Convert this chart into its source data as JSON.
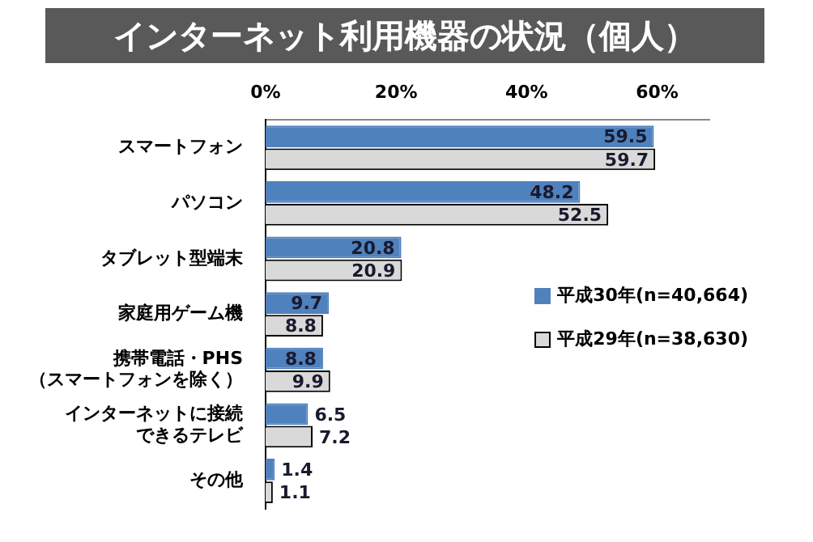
{
  "chart_data": {
    "type": "bar",
    "orientation": "horizontal",
    "title": "インターネット利用機器の状況（個人）",
    "categories": [
      "スマートフォン",
      "パソコン",
      "タブレット型端末",
      "家庭用ゲーム機",
      "携帯電話・PHS（スマートフォンを除く）",
      "インターネットに接続できるテレビ",
      "その他"
    ],
    "series": [
      {
        "name": "平成30年(n=40,664)",
        "color": "#4f81bd",
        "values": [
          59.5,
          48.2,
          20.8,
          9.7,
          8.8,
          6.5,
          1.4
        ]
      },
      {
        "name": "平成29年(n=38,630)",
        "color": "#d9d9d9",
        "values": [
          59.7,
          52.5,
          20.9,
          8.8,
          9.9,
          7.2,
          1.1
        ]
      }
    ],
    "xlim": [
      0,
      68
    ],
    "xticks": [
      {
        "value": 0,
        "label": "0%"
      },
      {
        "value": 20,
        "label": "20%"
      },
      {
        "value": 40,
        "label": "40%"
      },
      {
        "value": 60,
        "label": "60%"
      }
    ],
    "data_labels": true,
    "grid": false,
    "legend": "right"
  }
}
